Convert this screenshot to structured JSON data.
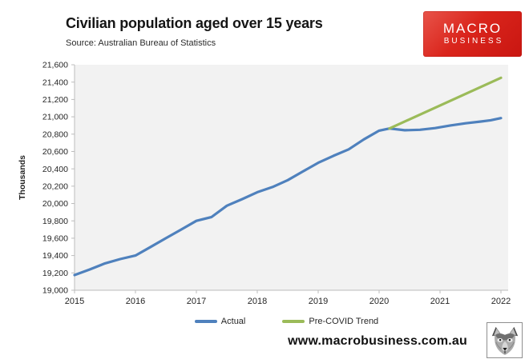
{
  "header": {
    "title": "Civilian population aged over 15 years",
    "source": "Source: Australian Bureau of Statistics",
    "logo": {
      "line1": "MACRO",
      "line2": "BUSINESS",
      "bg_color": "#d21b14",
      "text_color": "#ffffff"
    }
  },
  "footer": {
    "url": "www.macrobusiness.com.au",
    "wolf_icon": "wolf-head-logo"
  },
  "chart_data": {
    "type": "line",
    "title": "Civilian population aged over 15 years",
    "xlabel": "",
    "ylabel": "Thousands",
    "xlim": [
      2015,
      2022
    ],
    "ylim": [
      19000,
      21600
    ],
    "x_ticks": [
      2015,
      2016,
      2017,
      2018,
      2019,
      2020,
      2021,
      2022
    ],
    "y_ticks": [
      19000,
      19200,
      19400,
      19600,
      19800,
      20000,
      20200,
      20400,
      20600,
      20800,
      21000,
      21200,
      21400,
      21600
    ],
    "grid": false,
    "plot_bg": "#f2f2f2",
    "axis_color": "#bcbcbc",
    "tick_label_color": "#262626",
    "legend_position": "bottom-center",
    "series": [
      {
        "name": "Actual",
        "color": "#4f81bd",
        "points": [
          [
            2015.0,
            19175
          ],
          [
            2015.25,
            19240
          ],
          [
            2015.5,
            19310
          ],
          [
            2015.75,
            19360
          ],
          [
            2016.0,
            19400
          ],
          [
            2016.25,
            19500
          ],
          [
            2016.5,
            19600
          ],
          [
            2016.75,
            19700
          ],
          [
            2017.0,
            19800
          ],
          [
            2017.25,
            19845
          ],
          [
            2017.5,
            19975
          ],
          [
            2017.75,
            20050
          ],
          [
            2018.0,
            20130
          ],
          [
            2018.25,
            20190
          ],
          [
            2018.5,
            20270
          ],
          [
            2018.75,
            20370
          ],
          [
            2019.0,
            20470
          ],
          [
            2019.25,
            20550
          ],
          [
            2019.5,
            20625
          ],
          [
            2019.75,
            20740
          ],
          [
            2020.0,
            20840
          ],
          [
            2020.17,
            20865
          ],
          [
            2020.42,
            20845
          ],
          [
            2020.67,
            20850
          ],
          [
            2020.92,
            20870
          ],
          [
            2021.17,
            20900
          ],
          [
            2021.42,
            20925
          ],
          [
            2021.67,
            20945
          ],
          [
            2021.83,
            20960
          ],
          [
            2022.0,
            20985
          ]
        ]
      },
      {
        "name": "Pre-COVID Trend",
        "color": "#9bbb59",
        "points": [
          [
            2020.17,
            20865
          ],
          [
            2022.0,
            21450
          ]
        ]
      }
    ]
  }
}
